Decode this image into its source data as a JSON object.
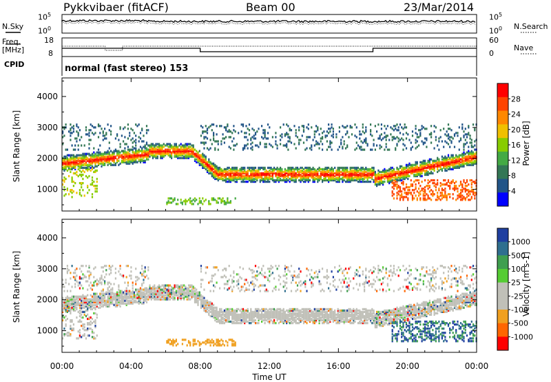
{
  "header": {
    "station": "Pykkvibaer (fitACF)",
    "beam": "Beam 00",
    "date": "23/Mar/2014"
  },
  "left_labels": {
    "nsky": "N.Sky",
    "freq_line1": "Freq.",
    "freq_line2": "[MHz]",
    "cpid": "CPID"
  },
  "right_labels": {
    "nsearch": "N.Search",
    "nave": "Nave"
  },
  "noise_panel": {
    "left_ticks": [
      "10^5",
      "10^0"
    ],
    "right_ticks": [
      "10^5",
      "10^0"
    ]
  },
  "freq_panel": {
    "left_ticks": [
      "18",
      "8"
    ],
    "right_ticks": [
      "60",
      "0"
    ]
  },
  "cpid_text": "normal (fast stereo) 153",
  "chart_data": [
    {
      "type": "heatmap",
      "name": "Power",
      "ylabel": "Slant Range [km]",
      "xlabel": "",
      "x_ticks": [
        "00:00",
        "04:00",
        "08:00",
        "12:00",
        "16:00",
        "20:00",
        "00:00"
      ],
      "y_ticks": [
        1000,
        2000,
        3000,
        4000
      ],
      "ylim": [
        300,
        4600
      ],
      "xlim": [
        0,
        24
      ],
      "colorbar": {
        "label": "Power [dB]",
        "ticks": [
          "28",
          "24",
          "20",
          "16",
          "12",
          "8",
          "4"
        ],
        "colors": [
          "#ff0000",
          "#ff4400",
          "#ff8800",
          "#f0c000",
          "#88cc00",
          "#44aa44",
          "#337755",
          "#225588",
          "#0000ff"
        ]
      }
    },
    {
      "type": "heatmap",
      "name": "Velocity",
      "ylabel": "Slant Range [km]",
      "xlabel": "Time UT",
      "x_ticks": [
        "00:00",
        "04:00",
        "08:00",
        "12:00",
        "16:00",
        "20:00",
        "00:00"
      ],
      "y_ticks": [
        1000,
        2000,
        3000,
        4000
      ],
      "ylim": [
        300,
        4600
      ],
      "xlim": [
        0,
        24
      ],
      "colorbar": {
        "label": "Velocity [m s-1]",
        "ticks": [
          "1000",
          "500",
          "100",
          "25",
          "-25",
          "-100",
          "-500",
          "-1000"
        ],
        "colors": [
          "#1f3fa0",
          "#2f6f8f",
          "#3f9f4f",
          "#55cc33",
          "#c0c0b8",
          "#c0c0b8",
          "#f0a020",
          "#ff6600",
          "#ff0000"
        ]
      }
    }
  ]
}
